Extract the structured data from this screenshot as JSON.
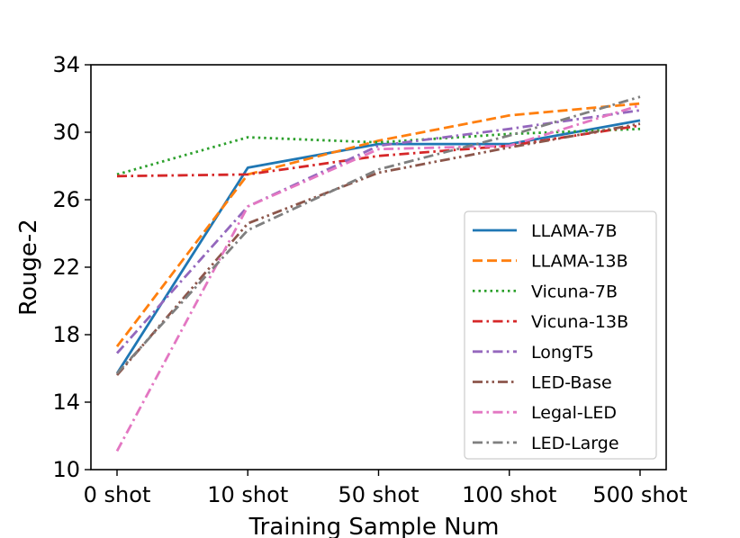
{
  "chart_data": {
    "type": "line",
    "title": "",
    "xlabel": "Training Sample Num",
    "ylabel": "Rouge-2",
    "categories": [
      "0 shot",
      "10 shot",
      "50 shot",
      "100 shot",
      "500 shot"
    ],
    "ylim": [
      10,
      34
    ],
    "yticks": [
      10,
      14,
      18,
      22,
      26,
      30,
      34
    ],
    "legend_position": "lower-right",
    "series": [
      {
        "name": "LLAMA-7B",
        "color": "#1f77b4",
        "dash": "solid",
        "values": [
          15.7,
          27.9,
          29.3,
          29.3,
          30.7
        ]
      },
      {
        "name": "LLAMA-13B",
        "color": "#ff7f0e",
        "dash": "dashed",
        "values": [
          17.3,
          27.5,
          29.5,
          31.0,
          31.7
        ]
      },
      {
        "name": "Vicuna-7B",
        "color": "#2ca02c",
        "dash": "dotted",
        "values": [
          27.5,
          29.7,
          29.4,
          29.9,
          30.2
        ]
      },
      {
        "name": "Vicuna-13B",
        "color": "#d62728",
        "dash": "dashdot",
        "values": [
          27.4,
          27.5,
          28.6,
          29.2,
          30.4
        ]
      },
      {
        "name": "LongT5",
        "color": "#9467bd",
        "dash": "dashdot",
        "values": [
          16.9,
          25.6,
          29.2,
          30.2,
          31.3
        ]
      },
      {
        "name": "LED-Base",
        "color": "#8c564b",
        "dash": "dashdotdot",
        "values": [
          15.6,
          24.6,
          27.6,
          29.1,
          30.5
        ]
      },
      {
        "name": "Legal-LED",
        "color": "#e377c2",
        "dash": "dashdot",
        "values": [
          11.1,
          25.6,
          29.0,
          29.2,
          31.6
        ]
      },
      {
        "name": "LED-Large",
        "color": "#7f7f7f",
        "dash": "dashdot",
        "values": [
          15.7,
          24.2,
          27.8,
          29.8,
          32.1
        ]
      }
    ]
  }
}
